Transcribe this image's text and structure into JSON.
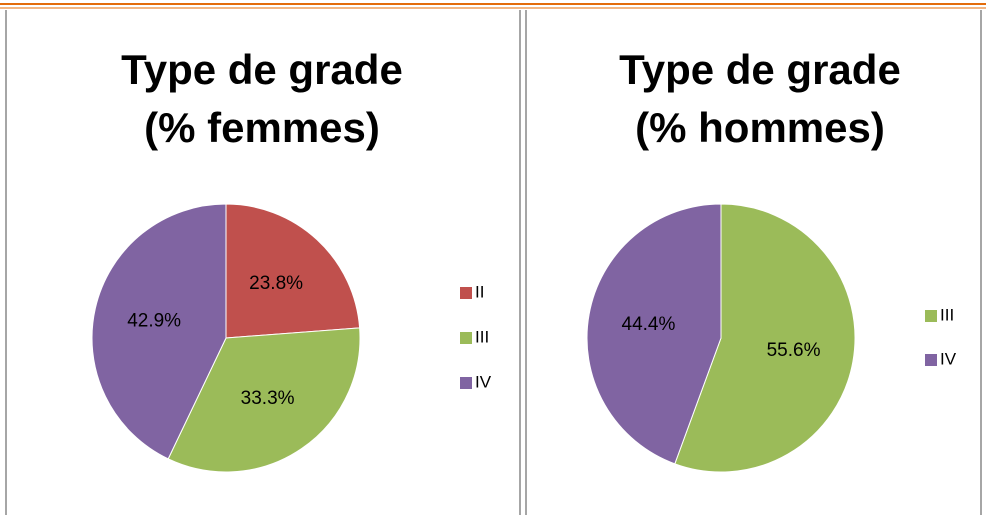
{
  "chart_data": [
    {
      "type": "pie",
      "title": [
        "Type de grade",
        "(% femmes)"
      ],
      "categories": [
        "II",
        "III",
        "IV"
      ],
      "values": [
        23.8,
        33.3,
        42.9
      ],
      "value_labels": [
        "23.8%",
        "33.3%",
        "42.9%"
      ],
      "colors": [
        "#c0504d",
        "#9bbb59",
        "#8064a2"
      ],
      "legend": "right"
    },
    {
      "type": "pie",
      "title": [
        "Type de grade",
        "(% hommes)"
      ],
      "categories": [
        "III",
        "IV"
      ],
      "values": [
        55.6,
        44.4
      ],
      "value_labels": [
        "55.6%",
        "44.4%"
      ],
      "colors": [
        "#9bbb59",
        "#8064a2"
      ],
      "legend": "right"
    }
  ]
}
